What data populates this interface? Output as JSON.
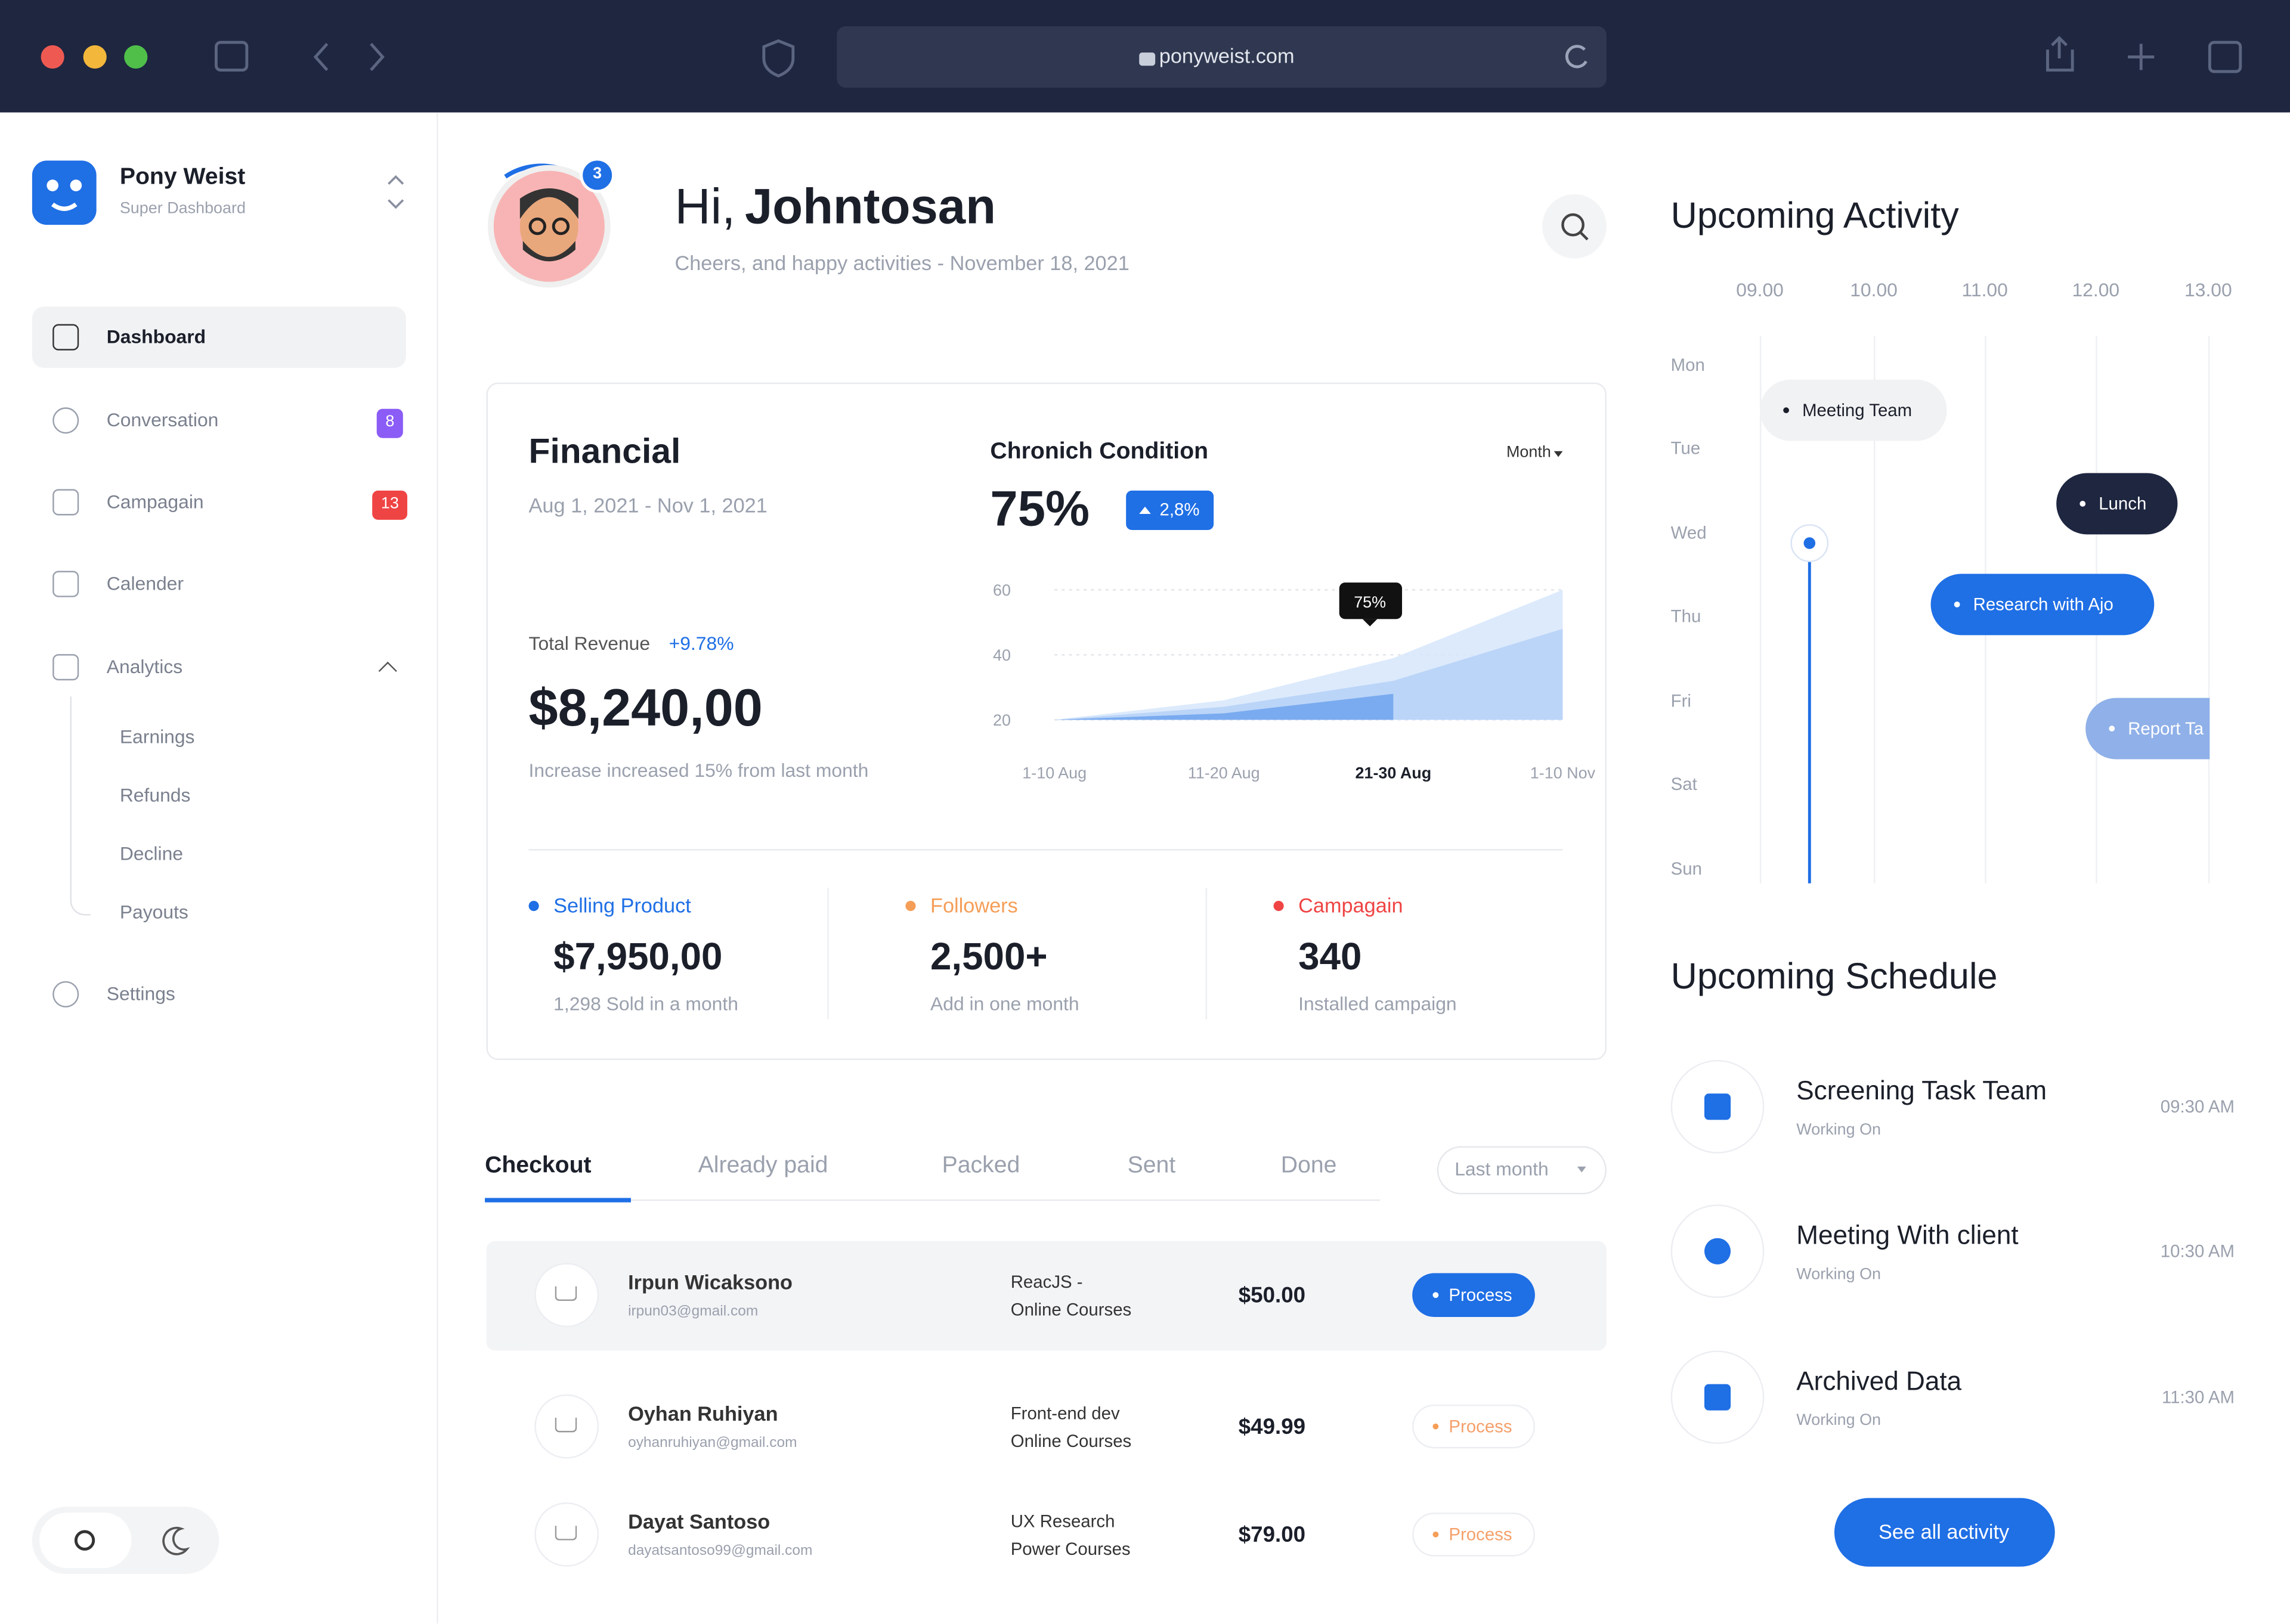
{
  "browser": {
    "url": "ponyweist.com"
  },
  "sidebar": {
    "brand": "Pony Weist",
    "subtitle": "Super Dashboard",
    "menu": [
      {
        "label": "Dashboard"
      },
      {
        "label": "Conversation",
        "badge": "8"
      },
      {
        "label": "Campagain",
        "badge": "13"
      },
      {
        "label": "Calender"
      },
      {
        "label": "Analytics",
        "children": [
          "Earnings",
          "Refunds",
          "Decline",
          "Payouts"
        ]
      },
      {
        "label": "Settings"
      }
    ]
  },
  "header": {
    "notifications": "3",
    "greeting": "Hi,",
    "name": "Johntosan",
    "subtitle": "Cheers, and happy activities - November 18, 2021"
  },
  "financial": {
    "title": "Financial",
    "period": "Aug 1, 2021 - Nov 1, 2021",
    "revenue_label": "Total Revenue",
    "revenue_change": "+9.78%",
    "revenue": "$8,240,00",
    "note": "Increase increased 15% from last month",
    "chart": {
      "type": "area",
      "title": "Chronich Condition",
      "filter": "Month",
      "value": "75%",
      "change": "2,8%",
      "annotation": "75%",
      "categories": [
        "1-10 Aug",
        "11-20 Aug",
        "21-30 Aug",
        "1-10 Nov"
      ],
      "series": [
        {
          "color": "#d6e6fb",
          "values": [
            20,
            26,
            39,
            60
          ]
        },
        {
          "color": "#b5d1f7",
          "values": [
            20,
            24,
            32,
            48
          ]
        },
        {
          "color": "#6fa3ee",
          "values": [
            20,
            22,
            28,
            null
          ]
        }
      ],
      "ylim": [
        20,
        60
      ],
      "yticks": [
        20,
        40,
        60
      ]
    },
    "stats": [
      {
        "label": "Selling Product",
        "color": "#1f6fe5",
        "value": "$7,950,00",
        "note": "1,298 Sold in a month"
      },
      {
        "label": "Followers",
        "color": "#f59e57",
        "value": "2,500+",
        "note": "Add in one month"
      },
      {
        "label": "Campagain",
        "color": "#ef4444",
        "value": "340",
        "note": "Installed campaign"
      }
    ]
  },
  "orders": {
    "tabs": [
      "Checkout",
      "Already paid",
      "Packed",
      "Sent",
      "Done"
    ],
    "filter": "Last month",
    "rows": [
      {
        "name": "Irpun Wicaksono",
        "email": "irpun03@gmail.com",
        "course": [
          "ReacJS -",
          "Online Courses"
        ],
        "price": "$50.00",
        "status": "Process"
      },
      {
        "name": "Oyhan Ruhiyan",
        "email": "oyhanruhiyan@gmail.com",
        "course": [
          "Front-end dev",
          "Online Courses"
        ],
        "price": "$49.99",
        "status": "Process"
      },
      {
        "name": "Dayat Santoso",
        "email": "dayatsantoso99@gmail.com",
        "course": [
          "UX Research",
          "Power Courses"
        ],
        "price": "$79.00",
        "status": "Process"
      }
    ]
  },
  "activity": {
    "title": "Upcoming Activity",
    "hours": [
      "09.00",
      "10.00",
      "11.00",
      "12.00",
      "13.00"
    ],
    "days": [
      "Mon",
      "Tue",
      "Wed",
      "Thu",
      "Fri",
      "Sat",
      "Sun"
    ],
    "events": [
      {
        "label": "Meeting Team"
      },
      {
        "label": "Lunch"
      },
      {
        "label": "Research with Ajo"
      },
      {
        "label": "Report Ta"
      }
    ]
  },
  "schedule": {
    "title": "Upcoming Schedule",
    "items": [
      {
        "title": "Screening Task Team",
        "status": "Working On",
        "time": "09:30 AM"
      },
      {
        "title": "Meeting With client",
        "status": "Working On",
        "time": "10:30 AM"
      },
      {
        "title": "Archived Data",
        "status": "Working On",
        "time": "11:30 AM"
      }
    ],
    "button": "See all activity"
  }
}
